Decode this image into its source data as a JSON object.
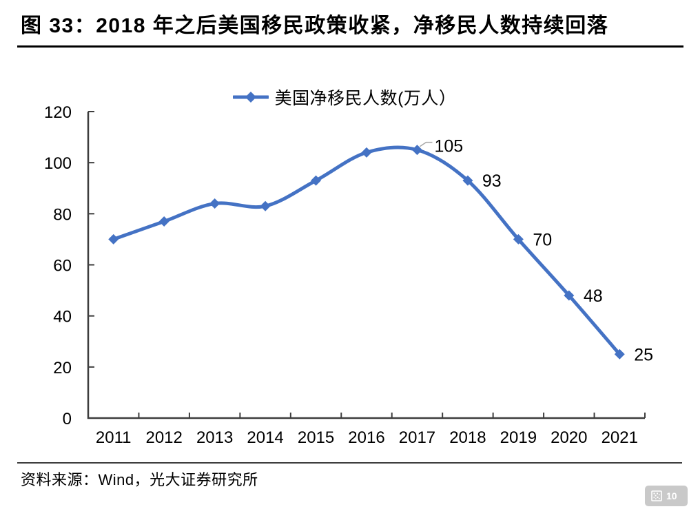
{
  "page": {
    "title": "图 33：2018 年之后美国移民政策收紧，净移民人数持续回落",
    "source": "资料来源：Wind，光大证券研究所",
    "badge": {
      "page_number": "10",
      "icon": "qr-code-icon"
    }
  },
  "legend": {
    "label": "美国净移民人数(万人）"
  },
  "chart_data": {
    "type": "line",
    "smooth": true,
    "title": "美国净移民人数(万人）",
    "categories": [
      "2011",
      "2012",
      "2013",
      "2014",
      "2015",
      "2016",
      "2017",
      "2018",
      "2019",
      "2020",
      "2021"
    ],
    "series": [
      {
        "name": "美国净移民人数(万人）",
        "color": "#4472C4",
        "values": [
          70,
          77,
          84,
          83,
          93,
          104,
          105,
          93,
          70,
          48,
          25
        ],
        "data_labels": [
          "",
          "",
          "",
          "",
          "",
          "",
          "105",
          "93",
          "70",
          "48",
          "25"
        ],
        "leader_line_category": "2017",
        "marker": "diamond"
      }
    ],
    "xlabel": "",
    "ylabel": "",
    "ylim": [
      0,
      120
    ],
    "ytick_step": 20,
    "grid": false,
    "legend_position": "top"
  },
  "colors": {
    "series_blue": "#4472C4",
    "axis": "#3d3d3d",
    "text": "#000000",
    "leader_line": "#a6a6a6",
    "badge_bg": "#c9c9c9",
    "badge_fg": "#ffffff",
    "background": "#ffffff"
  }
}
